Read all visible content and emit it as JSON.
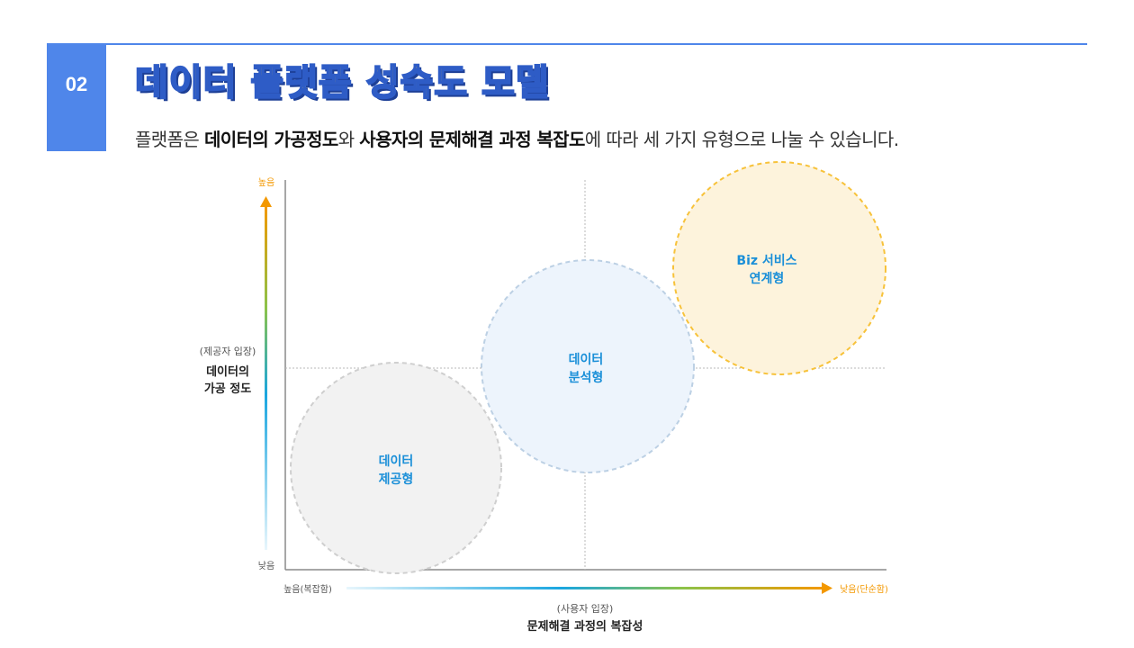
{
  "header": {
    "section_number": "02",
    "title": "데이터 플랫폼 성숙도 모델",
    "subtitle_parts": [
      {
        "text": "플랫폼은 ",
        "bold": false
      },
      {
        "text": "데이터의 가공정도",
        "bold": true
      },
      {
        "text": "와 ",
        "bold": false
      },
      {
        "text": "사용자의 문제해결 과정 복잡도",
        "bold": true
      },
      {
        "text": "에 따라 세 가지 유형으로 나눌 수 있습니다.",
        "bold": false
      }
    ]
  },
  "diagram": {
    "y_axis": {
      "top_label": "높음",
      "bottom_label": "낮음",
      "perspective": "(제공자 입장)",
      "title_line1": "데이터의",
      "title_line2": "가공 정도"
    },
    "x_axis": {
      "left_label": "높음(복잡함)",
      "right_label": "낮음(단순함)",
      "perspective": "(사용자 입장)",
      "title": "문제해결 과정의 복잡성"
    },
    "circles": [
      {
        "name": "data-provision",
        "line1": "데이터",
        "line2": "제공형",
        "fill": "#f2f2f2",
        "stroke": "#cfcfcf",
        "text_color": "#1a8fd8"
      },
      {
        "name": "data-analysis",
        "line1": "데이터",
        "line2": "분석형",
        "fill": "#edf4fc",
        "stroke": "#bcd0e4",
        "text_color": "#1a8fd8"
      },
      {
        "name": "biz-service",
        "line1": "Biz 서비스",
        "line2": "연계형",
        "fill": "#fdf3dc",
        "stroke": "#f7c23a",
        "text_color": "#1a8fd8"
      }
    ],
    "colors": {
      "axis_orange": "#f39800",
      "axis_blue": "#1aa6e0",
      "axis_green": "#8bc34a"
    }
  }
}
